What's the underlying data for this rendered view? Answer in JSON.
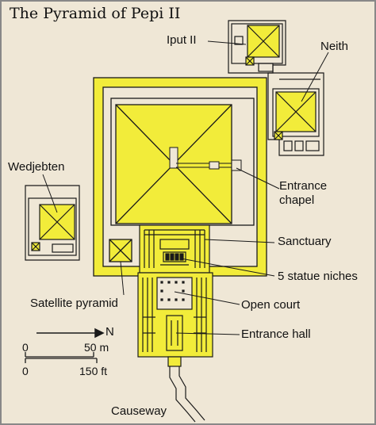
{
  "title": "The Pyramid of Pepi II",
  "labels": {
    "iput": "Iput II",
    "neith": "Neith",
    "wedjebten": "Wedjebten",
    "entrance_chapel_1": "Entrance",
    "entrance_chapel_2": "chapel",
    "sanctuary": "Sanctuary",
    "statue_niches": "5 statue niches",
    "satellite": "Satellite pyramid",
    "open_court": "Open court",
    "entrance_hall": "Entrance hall",
    "causeway": "Causeway"
  },
  "scale": {
    "north": "N",
    "m_zero": "0",
    "m_end": "50 m",
    "ft_zero": "0",
    "ft_end": "150 ft"
  },
  "colors": {
    "background": "#efe7d6",
    "pyramid": "#f2ec3a",
    "outline": "#1a1a1a"
  }
}
